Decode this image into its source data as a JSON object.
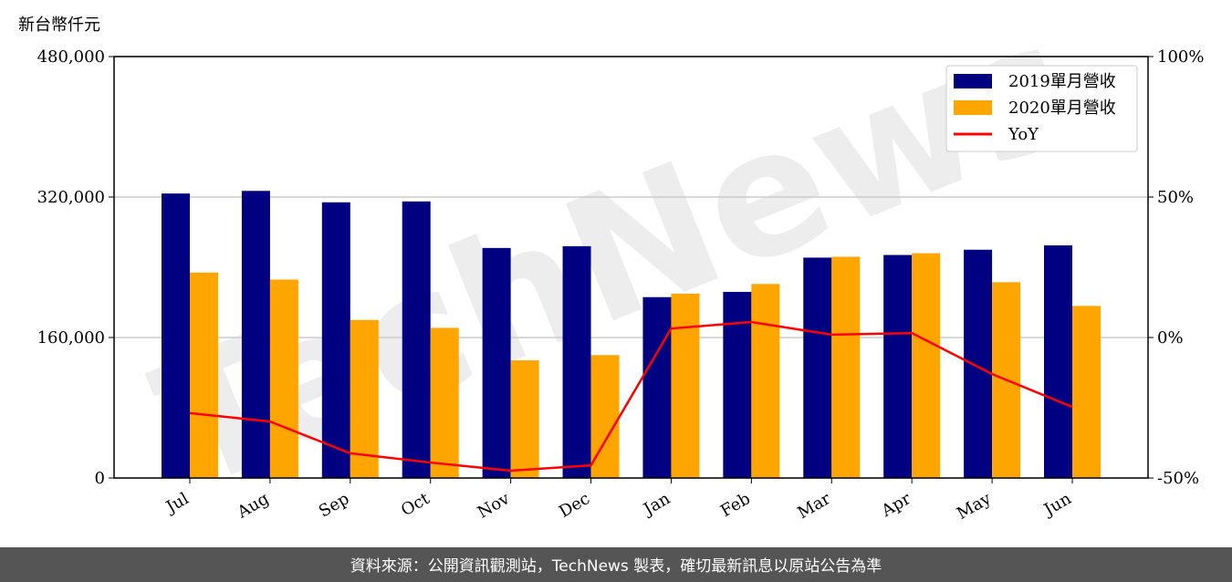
{
  "chart_data": {
    "type": "bar",
    "y_label": "新台幣仟元",
    "watermark": "TechNews",
    "footer": "資料來源：公開資訊觀測站，TechNews 製表，確切最新訊息以原站公告為準",
    "categories": [
      "Jul",
      "Aug",
      "Sep",
      "Oct",
      "Nov",
      "Dec",
      "Jan",
      "Feb",
      "Mar",
      "Apr",
      "May",
      "Jun"
    ],
    "series": [
      {
        "name": "2019單月營收",
        "type": "bar",
        "color": "#000080",
        "values": [
          324000,
          327000,
          314000,
          315000,
          262000,
          264000,
          206000,
          212000,
          251000,
          254000,
          260000,
          265000
        ]
      },
      {
        "name": "2020單月營收",
        "type": "bar",
        "color": "#ffa500",
        "values": [
          234000,
          226000,
          180000,
          171000,
          134000,
          140000,
          210000,
          221000,
          252000,
          256000,
          223000,
          196000
        ]
      },
      {
        "name": "YoY",
        "type": "line",
        "axis": "y2",
        "color": "#ff0000",
        "values": [
          -26.9,
          -29.9,
          -41.2,
          -44.5,
          -47.4,
          -45.5,
          3.2,
          5.5,
          1.0,
          1.6,
          -13.0,
          -24.7
        ]
      }
    ],
    "ylim": [
      0,
      480000
    ],
    "yticks": [
      0,
      {
        "value": 160000,
        "label": "160,000"
      },
      {
        "value": 320000,
        "label": "320,000"
      },
      {
        "value": 480000,
        "label": "480,000"
      }
    ],
    "y2lim": [
      -50,
      100
    ],
    "y2ticks": [
      {
        "value": -50,
        "label": "-50%"
      },
      {
        "value": 0,
        "label": "0%"
      },
      {
        "value": 50,
        "label": "50%"
      },
      {
        "value": 100,
        "label": "100%"
      }
    ],
    "grid": true,
    "legend": "upper right"
  }
}
